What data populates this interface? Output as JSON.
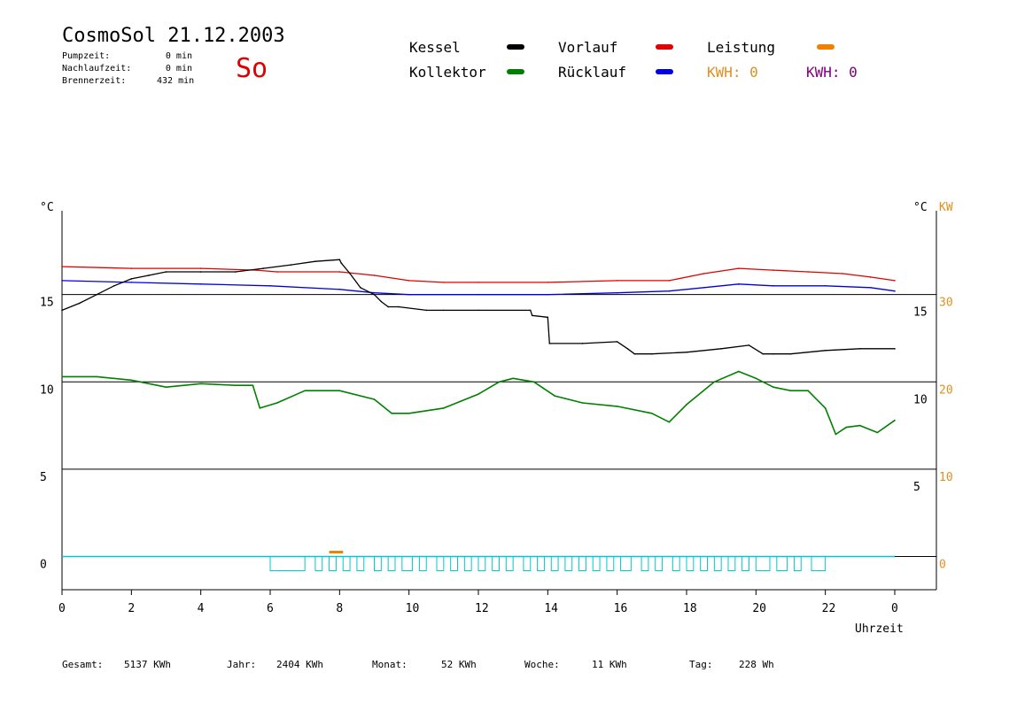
{
  "header": {
    "title": "CosmoSol 21.12.2003",
    "day": "So",
    "info": [
      {
        "label": "Pumpzeit:",
        "value": "0 min"
      },
      {
        "label": "Nachlaufzeit:",
        "value": "0 min"
      },
      {
        "label": "Brennerzeit:",
        "value": "432 min"
      }
    ]
  },
  "legend": {
    "kessel": {
      "label": "Kessel",
      "color": "#000000"
    },
    "kollektor": {
      "label": "Kollektor",
      "color": "#008000"
    },
    "vorlauf": {
      "label": "Vorlauf",
      "color": "#e00000"
    },
    "ruecklauf": {
      "label": "Rücklauf",
      "color": "#0000e0"
    },
    "leistung": {
      "label": "Leistung",
      "color": "#f08000"
    },
    "kwh1": {
      "label": "KWH: 0",
      "color": "#e09020"
    },
    "kwh2": {
      "label": "KWH: 0",
      "color": "#800080"
    }
  },
  "footer": [
    {
      "label": "Gesamt:",
      "value": "5137 KWh"
    },
    {
      "label": "Jahr:",
      "value": "2404 KWh"
    },
    {
      "label": "Monat:",
      "value": "52 KWh"
    },
    {
      "label": "Woche:",
      "value": "11 KWh"
    },
    {
      "label": "Tag:",
      "value": "228 Wh"
    }
  ],
  "chart_data": {
    "type": "line",
    "xlabel": "Uhrzeit",
    "x_ticks": [
      "0",
      "2",
      "4",
      "6",
      "8",
      "10",
      "12",
      "14",
      "16",
      "18",
      "20",
      "22",
      "0"
    ],
    "xlim": [
      0,
      24
    ],
    "y_left": {
      "unit": "°C",
      "ticks": [
        "15",
        "10",
        "5",
        "0"
      ],
      "range": [
        -1.9,
        19.8
      ]
    },
    "y_right": {
      "unit": "°C",
      "ticks": [
        "15",
        "10",
        "5"
      ]
    },
    "y_power": {
      "unit": "KW",
      "ticks": [
        "30",
        "20",
        "10",
        "0"
      ],
      "color": "#e09020"
    },
    "grid_y": [
      15,
      10,
      5,
      0
    ],
    "series": [
      {
        "name": "Vorlauf",
        "color": "#e00000",
        "x": [
          0,
          2,
          4,
          5.6,
          6.2,
          8,
          9,
          10,
          11,
          12,
          14,
          16,
          17.5,
          18.5,
          19.5,
          20.5,
          21.5,
          22.5,
          23.3,
          24
        ],
        "y": [
          16.6,
          16.5,
          16.5,
          16.4,
          16.3,
          16.3,
          16.1,
          15.8,
          15.7,
          15.7,
          15.7,
          15.8,
          15.8,
          16.2,
          16.5,
          16.4,
          16.3,
          16.2,
          16.0,
          15.8
        ]
      },
      {
        "name": "Rücklauf",
        "color": "#0000e0",
        "x": [
          0,
          2,
          4,
          6,
          8,
          9,
          10,
          12,
          14,
          16,
          17.5,
          18.5,
          19.5,
          20.5,
          22,
          23.3,
          24
        ],
        "y": [
          15.8,
          15.7,
          15.6,
          15.5,
          15.3,
          15.1,
          15.0,
          15.0,
          15.0,
          15.1,
          15.2,
          15.4,
          15.6,
          15.5,
          15.5,
          15.4,
          15.2
        ]
      },
      {
        "name": "Kessel",
        "color": "#000000",
        "x": [
          0,
          0.5,
          1,
          1.5,
          2,
          2.5,
          3,
          4,
          5,
          5.8,
          6.6,
          7.3,
          8.0,
          8.05,
          8.3,
          8.6,
          9.0,
          9.2,
          9.4,
          9.7,
          10.5,
          11,
          12,
          13.5,
          13.55,
          14.0,
          14.05,
          15.0,
          16.0,
          16.3,
          16.5,
          17,
          18,
          19,
          19.8,
          20.2,
          20.5,
          21,
          22,
          23,
          24
        ],
        "y": [
          14.1,
          14.5,
          15.0,
          15.5,
          15.9,
          16.1,
          16.3,
          16.3,
          16.3,
          16.5,
          16.7,
          16.9,
          17.0,
          16.8,
          16.2,
          15.4,
          15.0,
          14.6,
          14.3,
          14.3,
          14.1,
          14.1,
          14.1,
          14.1,
          13.8,
          13.7,
          12.2,
          12.2,
          12.3,
          11.9,
          11.6,
          11.6,
          11.7,
          11.9,
          12.1,
          11.6,
          11.6,
          11.6,
          11.8,
          11.9,
          11.9
        ]
      },
      {
        "name": "Kollektor",
        "color": "#008000",
        "x": [
          0,
          1,
          2,
          3,
          4,
          5,
          5.5,
          5.7,
          6.2,
          7,
          8,
          9,
          9.5,
          10,
          11,
          12,
          12.6,
          13,
          13.6,
          14.2,
          15,
          16,
          17,
          17.5,
          18,
          18.8,
          19.5,
          20,
          20.5,
          21,
          21.5,
          22,
          22.3,
          22.6,
          23,
          23.5,
          24
        ],
        "y": [
          10.3,
          10.3,
          10.1,
          9.7,
          9.9,
          9.8,
          9.8,
          8.5,
          8.8,
          9.5,
          9.5,
          9.0,
          8.2,
          8.2,
          8.5,
          9.3,
          10.0,
          10.2,
          10.0,
          9.2,
          8.8,
          8.6,
          8.2,
          7.7,
          8.7,
          10.0,
          10.6,
          10.2,
          9.7,
          9.5,
          9.5,
          8.5,
          7.0,
          7.4,
          7.5,
          7.1,
          7.8
        ]
      }
    ]
  }
}
